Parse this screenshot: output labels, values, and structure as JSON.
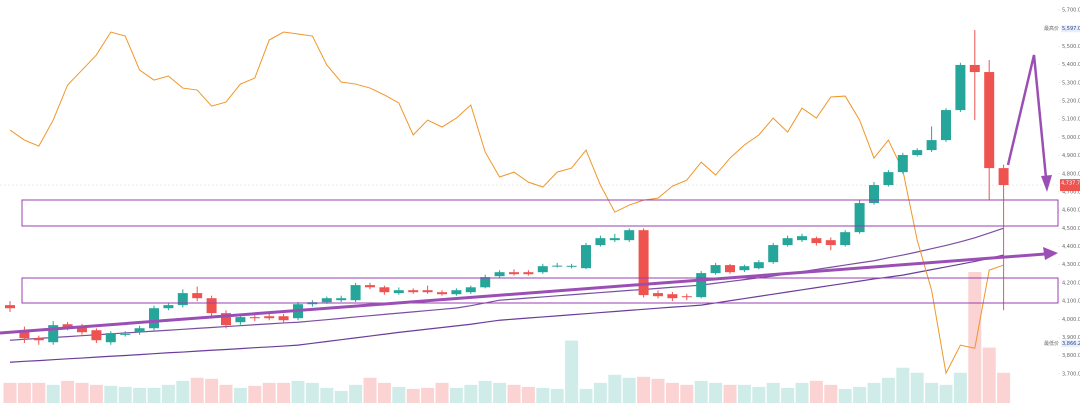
{
  "chart_data": {
    "type": "candlestick",
    "up_color": "#26a69a",
    "down_color": "#ef5350",
    "up_volume_color": "#d0ece9",
    "down_volume_color": "#fbd3d3",
    "ylim": [
      3540,
      5755
    ],
    "vlim": [
      0,
      400
    ],
    "yticks": [
      {
        "value": 3700,
        "label": "3,700.00"
      },
      {
        "value": 3800,
        "label": "3,800.00"
      },
      {
        "value": 3900,
        "label": "3,900.00"
      },
      {
        "value": 4000,
        "label": "4,000.00"
      },
      {
        "value": 4100,
        "label": "4,100.00"
      },
      {
        "value": 4200,
        "label": "4,200.00"
      },
      {
        "value": 4300,
        "label": "4,300.00"
      },
      {
        "value": 4400,
        "label": "4,400.00"
      },
      {
        "value": 4500,
        "label": "4,500.00"
      },
      {
        "value": 4600,
        "label": "4,600.00"
      },
      {
        "value": 4700,
        "label": "4,700.00"
      },
      {
        "value": 4800,
        "label": "4,800.00"
      },
      {
        "value": 4900,
        "label": "4,900.00"
      },
      {
        "value": 5000,
        "label": "5,000.00"
      },
      {
        "value": 5100,
        "label": "5,100.00"
      },
      {
        "value": 5200,
        "label": "5,200.00"
      },
      {
        "value": 5300,
        "label": "5,300.00"
      },
      {
        "value": 5400,
        "label": "5,400.00"
      },
      {
        "value": 5500,
        "label": "5,500.00"
      },
      {
        "value": 5700,
        "label": "5,700.00"
      }
    ],
    "high_marker": {
      "text": "最高价",
      "value": 5597.04,
      "label": "5,597.04"
    },
    "low_marker": {
      "text": "最低价",
      "value": 3866.28,
      "label": "3,866.28"
    },
    "current_price": {
      "value": 4737.74,
      "label": "4,737.74"
    },
    "open": [
      4078,
      3940,
      3896,
      3874,
      3973,
      3962,
      3940,
      3874,
      3918,
      3929,
      3951,
      4061,
      4078,
      4144,
      4116,
      4034,
      3984,
      4012,
      4017,
      4017,
      4006,
      4083,
      4094,
      4105,
      4105,
      4188,
      4176,
      4144,
      4160,
      4160,
      4149,
      4138,
      4149,
      4176,
      4237,
      4259,
      4259,
      4259,
      4292,
      4290,
      4281,
      4408,
      4435,
      4435,
      4490,
      4144,
      4138,
      4127,
      4122,
      4254,
      4298,
      4270,
      4281,
      4314,
      4408,
      4435,
      4446,
      4435,
      4408,
      4479,
      4639,
      4738,
      4809,
      4903,
      4930,
      4985,
      5150,
      5398,
      5359,
      4831
    ],
    "close": [
      4061,
      3896,
      3885,
      3968,
      3951,
      3929,
      3885,
      3924,
      3920,
      3951,
      4061,
      4078,
      4144,
      4116,
      4034,
      3968,
      4012,
      4006,
      4006,
      3995,
      4083,
      4094,
      4116,
      4116,
      4188,
      4176,
      4149,
      4160,
      4149,
      4149,
      4138,
      4160,
      4176,
      4232,
      4259,
      4248,
      4248,
      4292,
      4295,
      4294,
      4408,
      4446,
      4446,
      4490,
      4133,
      4127,
      4116,
      4122,
      4254,
      4298,
      4259,
      4292,
      4314,
      4408,
      4446,
      4457,
      4419,
      4408,
      4479,
      4639,
      4738,
      4809,
      4903,
      4930,
      4985,
      5150,
      5398,
      5359,
      4831,
      4738
    ],
    "high": [
      4100,
      3960,
      3910,
      3990,
      3985,
      3975,
      3950,
      3935,
      3935,
      3965,
      4075,
      4090,
      4165,
      4180,
      4130,
      4050,
      4030,
      4030,
      4035,
      4030,
      4095,
      4105,
      4125,
      4130,
      4200,
      4200,
      4185,
      4175,
      4170,
      4185,
      4160,
      4170,
      4185,
      4245,
      4270,
      4275,
      4270,
      4305,
      4310,
      4305,
      4420,
      4460,
      4470,
      4500,
      4500,
      4160,
      4150,
      4140,
      4265,
      4310,
      4305,
      4300,
      4325,
      4420,
      4460,
      4470,
      4455,
      4450,
      4490,
      4655,
      4755,
      4820,
      4915,
      4940,
      5060,
      5160,
      5410,
      5590,
      5425,
      4850
    ],
    "low": [
      4040,
      3870,
      3860,
      3860,
      3940,
      3915,
      3870,
      3860,
      3905,
      3915,
      3940,
      4050,
      4065,
      4100,
      4015,
      3950,
      3970,
      3990,
      3995,
      3980,
      3995,
      4070,
      4085,
      4095,
      4095,
      4165,
      4135,
      4135,
      4140,
      4140,
      4130,
      4130,
      4140,
      4170,
      4230,
      4240,
      4240,
      4250,
      4285,
      4280,
      4275,
      4400,
      4425,
      4425,
      4120,
      4115,
      4100,
      4105,
      4115,
      4245,
      4250,
      4260,
      4275,
      4305,
      4400,
      4425,
      4405,
      4380,
      4400,
      4470,
      4630,
      4730,
      4800,
      4895,
      4920,
      4975,
      5140,
      5095,
      4655,
      4050
    ],
    "volume": [
      20,
      20,
      20,
      18,
      22,
      20,
      18,
      17,
      16,
      15,
      15,
      18,
      22,
      25,
      24,
      18,
      15,
      17,
      20,
      20,
      22,
      20,
      15,
      12,
      18,
      25,
      20,
      16,
      14,
      15,
      20,
      15,
      18,
      22,
      20,
      18,
      16,
      15,
      14,
      62,
      14,
      20,
      28,
      25,
      26,
      24,
      20,
      18,
      22,
      20,
      18,
      18,
      16,
      20,
      15,
      20,
      22,
      18,
      14,
      16,
      20,
      25,
      35,
      30,
      20,
      18,
      30,
      130,
      55,
      30
    ],
    "series": [
      {
        "color": "#7b4fa0",
        "values": [
          3885,
          3890,
          3895,
          3900,
          3905,
          3910,
          3915,
          3920,
          3925,
          3930,
          3935,
          3940,
          3945,
          3950,
          3955,
          3960,
          3965,
          3970,
          3975,
          3980,
          3984,
          3991,
          3998,
          4005,
          4013,
          4020,
          4027,
          4034,
          4041,
          4048,
          4055,
          4062,
          4075,
          4090,
          4105,
          4111,
          4117,
          4123,
          4129,
          4135,
          4141,
          4147,
          4153,
          4159,
          4164,
          4170,
          4176,
          4182,
          4188,
          4198,
          4208,
          4218,
          4228,
          4238,
          4250,
          4262,
          4274,
          4286,
          4298,
          4310,
          4322,
          4338,
          4353,
          4370,
          4388,
          4406,
          4426,
          4448,
          4474,
          4501
        ]
      },
      {
        "color": "#6a3d9a",
        "values": [
          3764,
          3769,
          3773,
          3778,
          3783,
          3787,
          3792,
          3797,
          3801,
          3806,
          3811,
          3816,
          3820,
          3825,
          3830,
          3834,
          3839,
          3844,
          3848,
          3853,
          3858,
          3868,
          3878,
          3888,
          3898,
          3908,
          3918,
          3928,
          3937,
          3946,
          3955,
          3964,
          3973,
          3984,
          3995,
          4001,
          4007,
          4013,
          4019,
          4025,
          4031,
          4037,
          4043,
          4049,
          4055,
          4061,
          4067,
          4072,
          4078,
          4090,
          4102,
          4114,
          4126,
          4138,
          4150,
          4162,
          4174,
          4186,
          4198,
          4210,
          4222,
          4232,
          4243,
          4258,
          4273,
          4288,
          4303,
          4318,
          4335,
          4353
        ]
      },
      {
        "color": "#f0962a",
        "values": [
          5040,
          4985,
          4952,
          5095,
          5288,
          5370,
          5453,
          5579,
          5557,
          5370,
          5315,
          5337,
          5271,
          5260,
          5172,
          5194,
          5293,
          5326,
          5535,
          5579,
          5568,
          5557,
          5398,
          5304,
          5293,
          5271,
          5233,
          5189,
          5013,
          5095,
          5057,
          5106,
          5178,
          4919,
          4782,
          4809,
          4754,
          4727,
          4809,
          4831,
          4930,
          4738,
          4589,
          4628,
          4655,
          4666,
          4732,
          4765,
          4864,
          4793,
          4886,
          4958,
          5013,
          5106,
          5029,
          5161,
          5106,
          5222,
          5227,
          5095,
          4886,
          4985,
          4820,
          4435,
          4160,
          3704,
          3858,
          3841,
          4270,
          4298
        ]
      }
    ]
  }
}
